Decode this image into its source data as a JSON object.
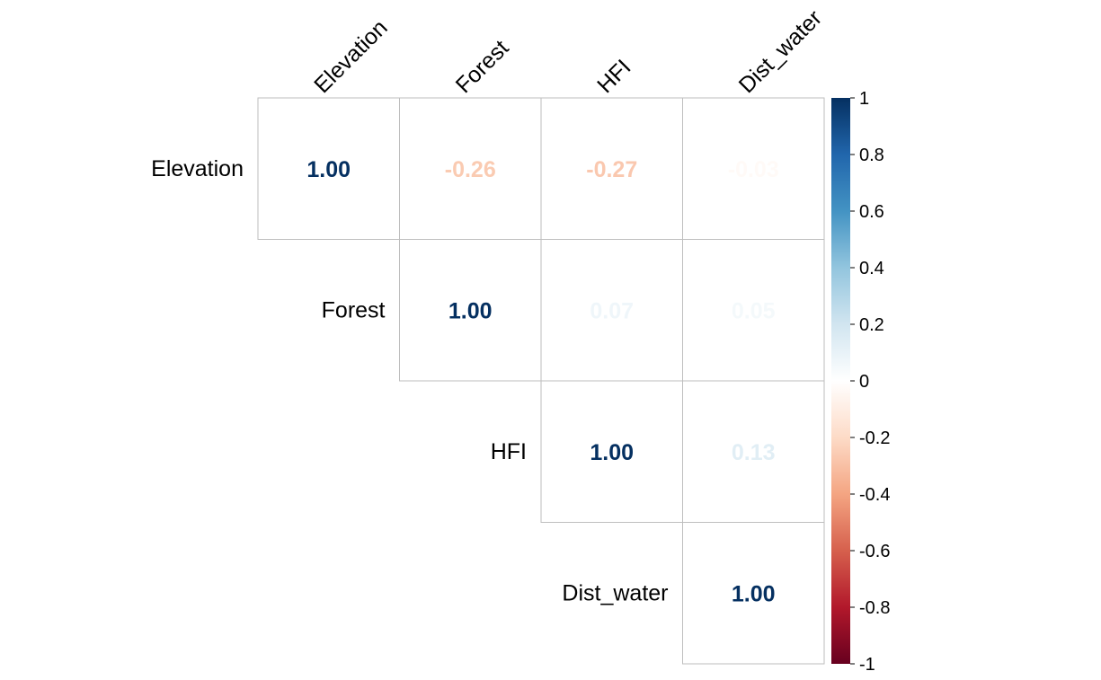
{
  "chart_data": {
    "type": "heatmap",
    "subtype": "correlation-matrix-upper-triangle",
    "variables": [
      "Elevation",
      "Forest",
      "HFI",
      "Dist_water"
    ],
    "matrix": [
      [
        1.0,
        -0.26,
        -0.27,
        -0.03
      ],
      [
        null,
        1.0,
        0.07,
        0.05
      ],
      [
        null,
        null,
        1.0,
        0.13
      ],
      [
        null,
        null,
        null,
        1.0
      ]
    ],
    "value_labels": [
      [
        "1.00",
        "-0.26",
        "-0.27",
        "-0.03"
      ],
      [
        null,
        "1.00",
        "0.07",
        "0.05"
      ],
      [
        null,
        null,
        "1.00",
        "0.13"
      ],
      [
        null,
        null,
        null,
        "1.00"
      ]
    ],
    "title": "",
    "colorbar": {
      "range": [
        -1,
        1
      ],
      "ticks": [
        "1",
        "0.8",
        "0.6",
        "0.4",
        "0.2",
        "0",
        "-0.2",
        "-0.4",
        "-0.6",
        "-0.8",
        "-1"
      ],
      "colors": [
        "#67001F",
        "#B2182B",
        "#D6604D",
        "#F4A582",
        "#FDDBC7",
        "#FFFFFF",
        "#D1E5F0",
        "#92C5DE",
        "#4393C3",
        "#2166AC",
        "#053061"
      ],
      "placement": "right"
    }
  }
}
